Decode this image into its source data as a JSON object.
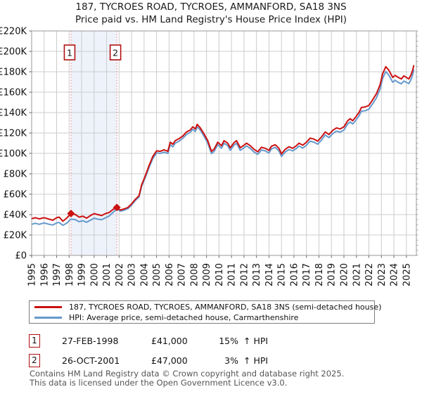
{
  "title": {
    "line1": "187, TYCROES ROAD, TYCROES, AMMANFORD, SA18 3NS",
    "line2": "Price paid vs. HM Land Registry's House Price Index (HPI)"
  },
  "chart_data": {
    "type": "line",
    "title": "Price paid vs. HPI",
    "x_axis": {
      "min": 1995,
      "max": 2025.8,
      "ticks": [
        1995,
        1996,
        1997,
        1998,
        1999,
        2000,
        2001,
        2002,
        2003,
        2004,
        2005,
        2006,
        2007,
        2008,
        2009,
        2010,
        2011,
        2012,
        2013,
        2014,
        2015,
        2016,
        2017,
        2018,
        2019,
        2020,
        2021,
        2022,
        2023,
        2024,
        2025
      ]
    },
    "y_axis": {
      "min": 0,
      "max": 220000,
      "tick_step": 20000,
      "minor_tick_step": 5000,
      "tick_labels": [
        "£0",
        "£20K",
        "£40K",
        "£60K",
        "£80K",
        "£100K",
        "£120K",
        "£140K",
        "£160K",
        "£180K",
        "£200K",
        "£220K"
      ]
    },
    "grid": true,
    "grid_color": "#cccccc",
    "border_color": "#999999",
    "band": {
      "from": 1998.15,
      "to": 2001.82,
      "color": "#eef2fb"
    },
    "event_line_color": "#e87a7a",
    "annotation_box_color": "#b01111",
    "series": [
      {
        "name": "187, TYCROES ROAD, TYCROES, AMMANFORD, SA18 3NS (semi-detached house)",
        "color": "#cc1111",
        "width": 2,
        "points": [
          [
            1995.0,
            36000
          ],
          [
            1995.3,
            37000
          ],
          [
            1995.6,
            35800
          ],
          [
            1996.0,
            37000
          ],
          [
            1996.4,
            35500
          ],
          [
            1996.7,
            34500
          ],
          [
            1997.0,
            37000
          ],
          [
            1997.2,
            37500
          ],
          [
            1997.5,
            33500
          ],
          [
            1997.8,
            36500
          ],
          [
            1998.15,
            41000
          ],
          [
            1998.5,
            40000
          ],
          [
            1998.8,
            37500
          ],
          [
            1999.1,
            38500
          ],
          [
            1999.4,
            36500
          ],
          [
            1999.7,
            39000
          ],
          [
            2000.0,
            41000
          ],
          [
            2000.3,
            40000
          ],
          [
            2000.6,
            39000
          ],
          [
            2000.9,
            41000
          ],
          [
            2001.2,
            42000
          ],
          [
            2001.5,
            45000
          ],
          [
            2001.82,
            47000
          ],
          [
            2002.1,
            44500
          ],
          [
            2002.4,
            45500
          ],
          [
            2002.7,
            47000
          ],
          [
            2003.0,
            50500
          ],
          [
            2003.3,
            55000
          ],
          [
            2003.6,
            58500
          ],
          [
            2003.8,
            69000
          ],
          [
            2004.1,
            78000
          ],
          [
            2004.4,
            88000
          ],
          [
            2004.7,
            97000
          ],
          [
            2005.0,
            102500
          ],
          [
            2005.3,
            102000
          ],
          [
            2005.6,
            103500
          ],
          [
            2005.9,
            102000
          ],
          [
            2006.1,
            111000
          ],
          [
            2006.3,
            109000
          ],
          [
            2006.5,
            112500
          ],
          [
            2006.8,
            114500
          ],
          [
            2007.1,
            117000
          ],
          [
            2007.4,
            121000
          ],
          [
            2007.7,
            123000
          ],
          [
            2007.9,
            126000
          ],
          [
            2008.1,
            124000
          ],
          [
            2008.25,
            128500
          ],
          [
            2008.5,
            125000
          ],
          [
            2008.8,
            119000
          ],
          [
            2009.1,
            112500
          ],
          [
            2009.4,
            102000
          ],
          [
            2009.6,
            104000
          ],
          [
            2009.9,
            111000
          ],
          [
            2010.2,
            107500
          ],
          [
            2010.4,
            112500
          ],
          [
            2010.7,
            110000
          ],
          [
            2010.9,
            105500
          ],
          [
            2011.2,
            110500
          ],
          [
            2011.4,
            112500
          ],
          [
            2011.7,
            105500
          ],
          [
            2012.0,
            108000
          ],
          [
            2012.2,
            110000
          ],
          [
            2012.5,
            107500
          ],
          [
            2012.8,
            104000
          ],
          [
            2013.1,
            101500
          ],
          [
            2013.4,
            106000
          ],
          [
            2013.7,
            105000
          ],
          [
            2014.0,
            103000
          ],
          [
            2014.2,
            107000
          ],
          [
            2014.5,
            108500
          ],
          [
            2014.8,
            105000
          ],
          [
            2015.0,
            99500
          ],
          [
            2015.3,
            104000
          ],
          [
            2015.6,
            106500
          ],
          [
            2015.9,
            105000
          ],
          [
            2016.2,
            107500
          ],
          [
            2016.4,
            110000
          ],
          [
            2016.7,
            108000
          ],
          [
            2017.0,
            111000
          ],
          [
            2017.3,
            115000
          ],
          [
            2017.6,
            114000
          ],
          [
            2017.9,
            112000
          ],
          [
            2018.2,
            116000
          ],
          [
            2018.5,
            121000
          ],
          [
            2018.8,
            118500
          ],
          [
            2019.1,
            122500
          ],
          [
            2019.4,
            125000
          ],
          [
            2019.7,
            124000
          ],
          [
            2020.0,
            126000
          ],
          [
            2020.3,
            132000
          ],
          [
            2020.5,
            134000
          ],
          [
            2020.7,
            132000
          ],
          [
            2020.9,
            135000
          ],
          [
            2021.2,
            140000
          ],
          [
            2021.4,
            145000
          ],
          [
            2021.7,
            145500
          ],
          [
            2022.0,
            147000
          ],
          [
            2022.3,
            152500
          ],
          [
            2022.6,
            158500
          ],
          [
            2022.9,
            167500
          ],
          [
            2023.1,
            178000
          ],
          [
            2023.35,
            185000
          ],
          [
            2023.6,
            181500
          ],
          [
            2023.9,
            174500
          ],
          [
            2024.1,
            176500
          ],
          [
            2024.35,
            174500
          ],
          [
            2024.6,
            173000
          ],
          [
            2024.8,
            176000
          ],
          [
            2025.0,
            174500
          ],
          [
            2025.2,
            173000
          ],
          [
            2025.35,
            176500
          ],
          [
            2025.5,
            181500
          ],
          [
            2025.6,
            186500
          ]
        ]
      },
      {
        "name": "HPI: Average price, semi-detached house, Carmarthenshire",
        "color": "#6699cc",
        "width": 2,
        "points": [
          [
            1995.0,
            30500
          ],
          [
            1995.3,
            31500
          ],
          [
            1995.6,
            30500
          ],
          [
            1996.0,
            31800
          ],
          [
            1996.4,
            30500
          ],
          [
            1996.7,
            29800
          ],
          [
            1997.0,
            31800
          ],
          [
            1997.2,
            32300
          ],
          [
            1997.5,
            29500
          ],
          [
            1997.8,
            31500
          ],
          [
            1998.15,
            35600
          ],
          [
            1998.5,
            35000
          ],
          [
            1998.8,
            33000
          ],
          [
            1999.1,
            34000
          ],
          [
            1999.4,
            32500
          ],
          [
            1999.7,
            34500
          ],
          [
            2000.0,
            36500
          ],
          [
            2000.3,
            35500
          ],
          [
            2000.6,
            35000
          ],
          [
            2000.9,
            36800
          ],
          [
            2001.2,
            38500
          ],
          [
            2001.5,
            42000
          ],
          [
            2001.82,
            45600
          ],
          [
            2002.1,
            43300
          ],
          [
            2002.4,
            44300
          ],
          [
            2002.7,
            45800
          ],
          [
            2003.0,
            49300
          ],
          [
            2003.3,
            53800
          ],
          [
            2003.6,
            57300
          ],
          [
            2003.8,
            67500
          ],
          [
            2004.1,
            76500
          ],
          [
            2004.4,
            86000
          ],
          [
            2004.7,
            95000
          ],
          [
            2005.0,
            100500
          ],
          [
            2005.3,
            100000
          ],
          [
            2005.6,
            101200
          ],
          [
            2005.9,
            100000
          ],
          [
            2006.1,
            108500
          ],
          [
            2006.3,
            106500
          ],
          [
            2006.5,
            110000
          ],
          [
            2006.8,
            112000
          ],
          [
            2007.1,
            114800
          ],
          [
            2007.4,
            118500
          ],
          [
            2007.7,
            120700
          ],
          [
            2007.9,
            123500
          ],
          [
            2008.1,
            121500
          ],
          [
            2008.25,
            126000
          ],
          [
            2008.5,
            122800
          ],
          [
            2008.8,
            116800
          ],
          [
            2009.1,
            110000
          ],
          [
            2009.4,
            99800
          ],
          [
            2009.6,
            101800
          ],
          [
            2009.9,
            108600
          ],
          [
            2010.2,
            105000
          ],
          [
            2010.4,
            110000
          ],
          [
            2010.7,
            107500
          ],
          [
            2010.9,
            103000
          ],
          [
            2011.2,
            108000
          ],
          [
            2011.4,
            110000
          ],
          [
            2011.7,
            103000
          ],
          [
            2012.0,
            105400
          ],
          [
            2012.2,
            107400
          ],
          [
            2012.5,
            104800
          ],
          [
            2012.8,
            101400
          ],
          [
            2013.1,
            99000
          ],
          [
            2013.4,
            103400
          ],
          [
            2013.7,
            102400
          ],
          [
            2014.0,
            100400
          ],
          [
            2014.2,
            104400
          ],
          [
            2014.5,
            105800
          ],
          [
            2014.8,
            102400
          ],
          [
            2015.0,
            97000
          ],
          [
            2015.3,
            101400
          ],
          [
            2015.6,
            103800
          ],
          [
            2015.9,
            102400
          ],
          [
            2016.2,
            104800
          ],
          [
            2016.4,
            107200
          ],
          [
            2016.7,
            105200
          ],
          [
            2017.0,
            108000
          ],
          [
            2017.3,
            112000
          ],
          [
            2017.6,
            111000
          ],
          [
            2017.9,
            109000
          ],
          [
            2018.2,
            113000
          ],
          [
            2018.5,
            118000
          ],
          [
            2018.8,
            115400
          ],
          [
            2019.1,
            119400
          ],
          [
            2019.4,
            121800
          ],
          [
            2019.7,
            120800
          ],
          [
            2020.0,
            122800
          ],
          [
            2020.3,
            128800
          ],
          [
            2020.5,
            130800
          ],
          [
            2020.7,
            128800
          ],
          [
            2020.9,
            131600
          ],
          [
            2021.2,
            136600
          ],
          [
            2021.4,
            141400
          ],
          [
            2021.7,
            141800
          ],
          [
            2022.0,
            143300
          ],
          [
            2022.3,
            148600
          ],
          [
            2022.6,
            154400
          ],
          [
            2022.9,
            163200
          ],
          [
            2023.1,
            173400
          ],
          [
            2023.35,
            180200
          ],
          [
            2023.6,
            176600
          ],
          [
            2023.9,
            169800
          ],
          [
            2024.1,
            171600
          ],
          [
            2024.35,
            169600
          ],
          [
            2024.6,
            168200
          ],
          [
            2024.8,
            171000
          ],
          [
            2025.0,
            169600
          ],
          [
            2025.2,
            168400
          ],
          [
            2025.35,
            171800
          ],
          [
            2025.5,
            177000
          ],
          [
            2025.6,
            182200
          ]
        ]
      }
    ],
    "markers": [
      {
        "label": "1",
        "x": 1998.15,
        "y": 41000
      },
      {
        "label": "2",
        "x": 2001.82,
        "y": 47000
      }
    ],
    "legend_position": "below"
  },
  "transactions": [
    {
      "index": "1",
      "date": "27-FEB-1998",
      "price": "£41,000",
      "pct": "15%",
      "hpi": "↑ HPI"
    },
    {
      "index": "2",
      "date": "26-OCT-2001",
      "price": "£47,000",
      "pct": "3%",
      "hpi": "↑ HPI"
    }
  ],
  "footer": {
    "line1": "Contains HM Land Registry data © Crown copyright and database right 2025.",
    "line2": "This data is licensed under the Open Government Licence v3.0."
  }
}
